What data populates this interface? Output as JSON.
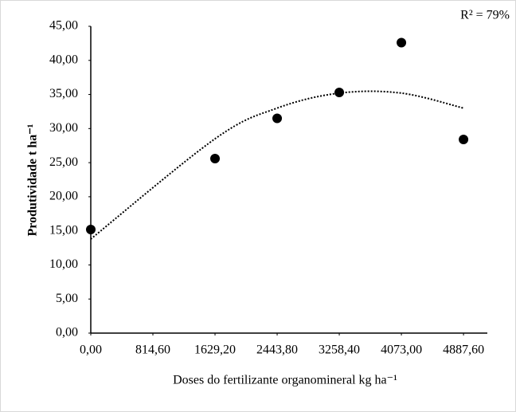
{
  "chart_data": {
    "type": "scatter",
    "annotation": "R² = 79%",
    "xlabel": "Doses do fertilizante organomineral kg ha⁻¹",
    "ylabel": "Produtividade t ha⁻¹",
    "x": [
      0,
      1629.2,
      2443.8,
      3258.4,
      4073,
      4887.6
    ],
    "values": [
      15.2,
      25.6,
      31.5,
      35.3,
      42.6,
      28.4
    ],
    "color": "#000000",
    "trendline": {
      "values": [
        13.8,
        28.5,
        33.0,
        35.2,
        35.2,
        33.0
      ],
      "style": "dotted"
    },
    "xlim": [
      0,
      5200
    ],
    "xticks": [
      {
        "value": 0,
        "label": "0,00"
      },
      {
        "value": 814.6,
        "label": "814,60"
      },
      {
        "value": 1629.2,
        "label": "1629,20"
      },
      {
        "value": 2443.8,
        "label": "2443,80"
      },
      {
        "value": 3258.4,
        "label": "3258,40"
      },
      {
        "value": 4073,
        "label": "4073,00"
      },
      {
        "value": 4887.6,
        "label": "4887,60"
      }
    ],
    "ylim": [
      0,
      45
    ],
    "yticks": [
      {
        "value": 0,
        "label": "0,00"
      },
      {
        "value": 5,
        "label": "5,00"
      },
      {
        "value": 10,
        "label": "10,00"
      },
      {
        "value": 15,
        "label": "15,00"
      },
      {
        "value": 20,
        "label": "20,00"
      },
      {
        "value": 25,
        "label": "25,00"
      },
      {
        "value": 30,
        "label": "30,00"
      },
      {
        "value": 35,
        "label": "35,00"
      },
      {
        "value": 40,
        "label": "40,00"
      },
      {
        "value": 45,
        "label": "45,00"
      }
    ],
    "grid": false
  }
}
